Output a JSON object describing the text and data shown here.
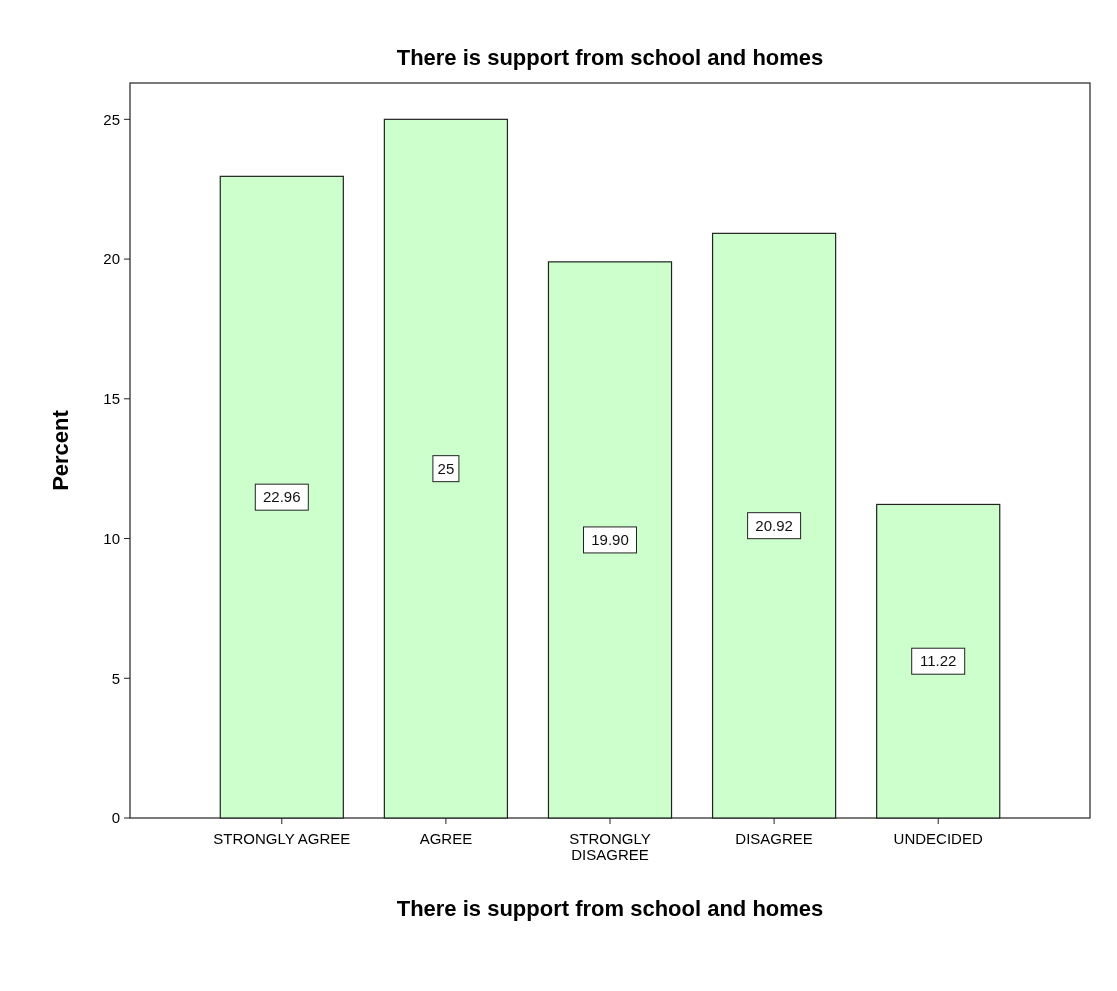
{
  "chart_data": {
    "type": "bar",
    "title": "There is support from school and homes",
    "xlabel": "There is support from school and homes",
    "ylabel": "Percent",
    "categories": [
      "STRONGLY AGREE",
      "AGREE",
      "STRONGLY DISAGREE",
      "DISAGREE",
      "UNDECIDED"
    ],
    "values": [
      22.96,
      25,
      19.9,
      20.92,
      11.22
    ],
    "value_labels": [
      "22.96",
      "25",
      "19.90",
      "20.92",
      "11.22"
    ],
    "color": "#ccffcc",
    "ylim": [
      0,
      26.3
    ],
    "yticks": [
      0,
      5,
      10,
      15,
      20,
      25
    ]
  }
}
